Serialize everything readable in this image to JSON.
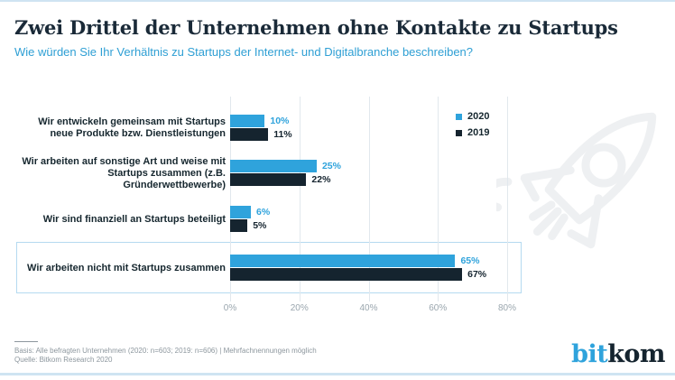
{
  "header": {
    "title": "Zwei Drittel der Unternehmen ohne Kontakte zu Startups",
    "subtitle": "Wie würden Sie Ihr Verhältnis zu Startups der Internet- und Digitalbranche beschreiben?"
  },
  "chart_data": {
    "type": "bar",
    "orientation": "horizontal",
    "title": "Zwei Drittel der Unternehmen ohne Kontakte zu Startups",
    "categories": [
      "Wir entwickeln gemeinsam mit Startups neue Produkte bzw. Dienstleistungen",
      "Wir arbeiten auf sonstige Art und weise mit Startups zusammen (z.B. Gründerwettbewerbe)",
      "Wir sind finanziell an Startups beteiligt",
      "Wir arbeiten nicht mit Startups zusammen"
    ],
    "category_lines": [
      [
        "Wir entwickeln gemeinsam mit Startups",
        "neue Produkte bzw. Dienstleistungen"
      ],
      [
        "Wir arbeiten auf sonstige Art und weise mit",
        "Startups zusammen (z.B. Gründerwettbewerbe)"
      ],
      [
        "Wir sind finanziell an Startups beteiligt"
      ],
      [
        "Wir arbeiten nicht mit Startups zusammen"
      ]
    ],
    "series": [
      {
        "name": "2020",
        "values": [
          10,
          25,
          6,
          65
        ],
        "color": "#2fa3dc"
      },
      {
        "name": "2019",
        "values": [
          11,
          22,
          5,
          67
        ],
        "color": "#15242f"
      }
    ],
    "value_suffix": "%",
    "xlim": [
      0,
      80
    ],
    "tick_values": [
      0,
      20,
      40,
      60,
      80
    ],
    "ticks": [
      "0%",
      "20%",
      "40%",
      "60%",
      "80%"
    ],
    "grid": true,
    "legend_position": "top-right",
    "highlighted_category_index": 3
  },
  "legend": {
    "items": [
      {
        "label": "2020",
        "color": "#2fa3dc"
      },
      {
        "label": "2019",
        "color": "#15242f"
      }
    ]
  },
  "footer": {
    "basis": "Basis: Alle befragten Unternehmen (2020: n=603; 2019: n=606) | Mehrfachnennungen möglich",
    "source": "Quelle: Bitkom Research 2020"
  },
  "logo": {
    "part1": "bit",
    "part2": "kom"
  },
  "colors": {
    "title_text": "#1a2a38",
    "subtitle_text": "#2e9fd4",
    "category_text": "#16272f",
    "grid_line": "#e1e8ed",
    "tick_text": "#9aa6ae",
    "highlight_border": "#b5daf0",
    "footer_text": "#8d979e",
    "edge_rule": "#cfe4f2",
    "logo_blue": "#2fa3dc",
    "logo_dark": "#15242f",
    "watermark": "#eef0f2"
  }
}
